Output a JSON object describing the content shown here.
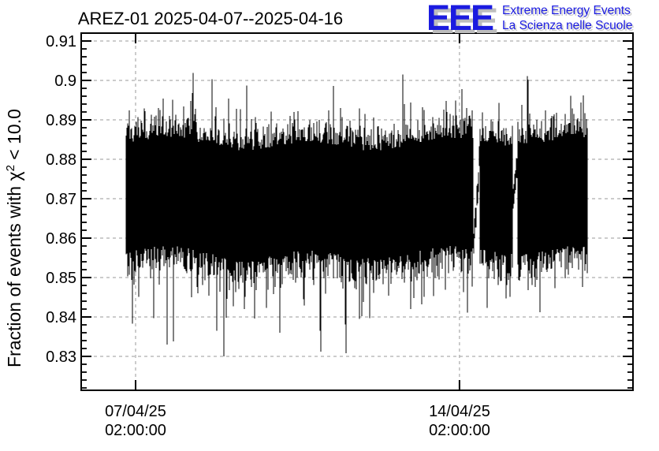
{
  "page": {
    "background": "#ffffff"
  },
  "header": {
    "logo": {
      "acronym": "EEE",
      "tagline_line1": "Extreme Energy Events",
      "tagline_line2": "La Scienza nelle Scuole",
      "blue": "#1b1be0",
      "shadow": "#bdbdbd",
      "text_shadow": "#cccccc"
    }
  },
  "chart_data": {
    "type": "line",
    "title": "AREZ-01 2025-04-07--2025-04-16",
    "ylabel": {
      "prefix": "Fraction of events with ",
      "chi": "χ",
      "sup": "2",
      "suffix": " < 10.0"
    },
    "ylim": [
      0.8214,
      0.912
    ],
    "yticks": [
      {
        "value": 0.83,
        "label": "0.83"
      },
      {
        "value": 0.84,
        "label": "0.84"
      },
      {
        "value": 0.85,
        "label": "0.85"
      },
      {
        "value": 0.86,
        "label": "0.86"
      },
      {
        "value": 0.87,
        "label": "0.87"
      },
      {
        "value": 0.88,
        "label": "0.88"
      },
      {
        "value": 0.89,
        "label": "0.89"
      },
      {
        "value": 0.9,
        "label": "0.9"
      },
      {
        "value": 0.91,
        "label": "0.91"
      }
    ],
    "y_minor_step": 0.002,
    "xticks": [
      {
        "date": "07/04/25",
        "time": "02:00:00",
        "day_offset": 0
      },
      {
        "date": "14/04/25",
        "time": "02:00:00",
        "day_offset": 7
      }
    ],
    "x_span_days": [
      -1.175,
      10.75
    ],
    "grid": {
      "show": true,
      "color": "#9a9a9a",
      "dash": "4 4"
    },
    "axis_color": "#000000",
    "series": {
      "name": "fraction of events with chi2 < 10.0 vs time",
      "color": "#000000",
      "t_start_days": -0.2,
      "t_end_days": 9.76,
      "band_top": 0.8838,
      "band_bottom": 0.8565,
      "top_jitter_sigma": 0.0038,
      "bottom_jitter_sigma": 0.0048,
      "spike_up_prob": 0.045,
      "spike_up_max": 0.016,
      "spike_down_prob": 0.055,
      "spike_down_max": 0.02,
      "max_value": 0.9055,
      "min_value": 0.828,
      "gaps_days": [
        [
          7.3,
          7.44
        ],
        [
          8.16,
          8.26
        ]
      ],
      "gap_trace": [
        [
          0.858,
          0.88
        ],
        [
          0.868,
          0.881
        ]
      ],
      "seed": 20250416
    }
  }
}
